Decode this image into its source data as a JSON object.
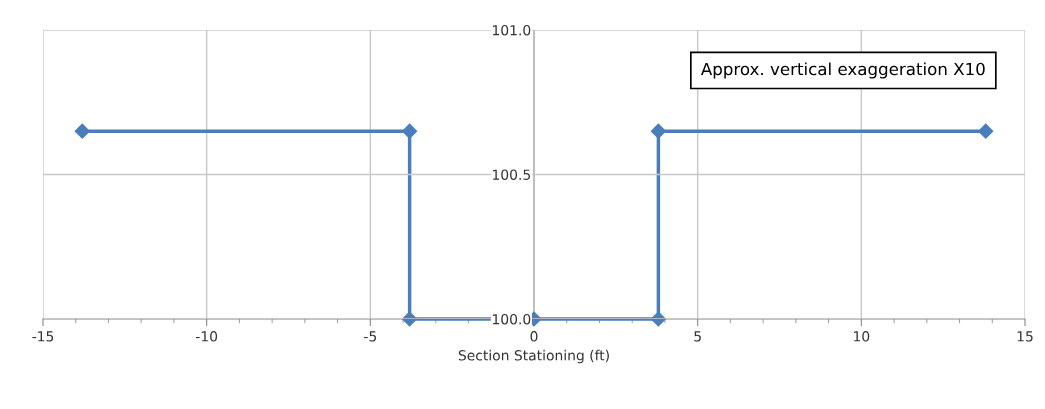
{
  "chart_data": {
    "type": "line",
    "xlabel": "Section Stationing (ft)",
    "x": [
      -13.8,
      -3.8,
      -3.8,
      0,
      3.8,
      3.8,
      13.8
    ],
    "series": [
      {
        "color": "#4a7ebb",
        "values": [
          100.65,
          100.65,
          100.0,
          100.0,
          100.0,
          100.65,
          100.65
        ]
      }
    ],
    "xlim": [
      -15,
      15
    ],
    "xticks": [
      -15,
      -10,
      -5,
      0,
      5,
      10,
      15
    ],
    "ylim": [
      100.0,
      101.0
    ],
    "yticks": [
      {
        "value": 100.0,
        "label": "100.0"
      },
      {
        "value": 100.5,
        "label": "100.5"
      },
      {
        "value": 101.0,
        "label": "101.0"
      }
    ],
    "grid": true,
    "marker": "diamond",
    "line_style": "solid",
    "annotations": [
      "Approx. vertical exaggeration X10"
    ]
  }
}
